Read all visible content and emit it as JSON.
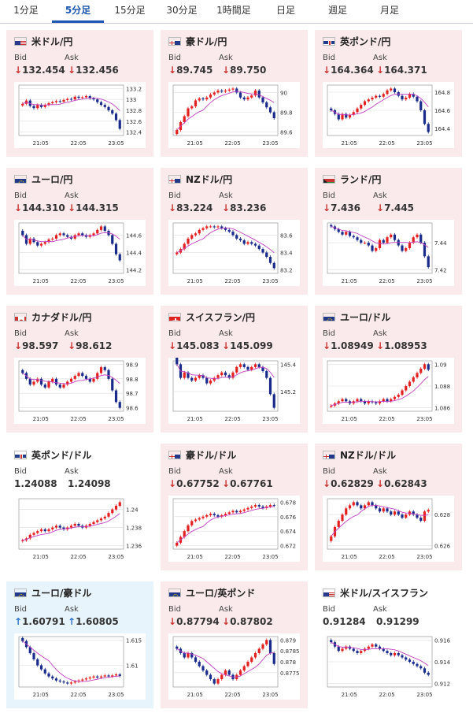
{
  "tabs": [
    {
      "label": "1分足",
      "active": false
    },
    {
      "label": "5分足",
      "active": true
    },
    {
      "label": "15分足",
      "active": false
    },
    {
      "label": "30分足",
      "active": false
    },
    {
      "label": "1時間足",
      "active": false
    },
    {
      "label": "日足",
      "active": false
    },
    {
      "label": "週足",
      "active": false
    },
    {
      "label": "月足",
      "active": false
    }
  ],
  "labels": {
    "bid": "Bid",
    "ask": "Ask"
  },
  "xticks": [
    "21:05",
    "22:05",
    "23:05"
  ],
  "colors": {
    "up_candle": "#e32020",
    "down_candle": "#1a2a8a",
    "ma": "#c040c0",
    "accent": "#1a56b0"
  },
  "cards": [
    {
      "name": "米ドル/円",
      "flag": "us-flag",
      "dir": "down",
      "bid": "132.454",
      "ask": "132.456",
      "yticks": [
        "133.2",
        "133",
        "132.8",
        "132.6",
        "132.4"
      ],
      "series": [
        132.92,
        132.98,
        132.88,
        132.84,
        132.9,
        132.86,
        132.9,
        132.93,
        132.95,
        132.97,
        132.96,
        132.99,
        133.01,
        133.0,
        133.05,
        133.03,
        133.04,
        133.06,
        133.02,
        133.0,
        132.95,
        132.9,
        132.86,
        132.8,
        132.74,
        132.62,
        132.46
      ]
    },
    {
      "name": "豪ドル/円",
      "flag": "au-flag",
      "dir": "down",
      "bid": "89.745",
      "ask": "89.750",
      "yticks": [
        "90",
        "89.8",
        "89.6"
      ],
      "series": [
        89.62,
        89.7,
        89.76,
        89.84,
        89.86,
        89.92,
        89.94,
        89.93,
        89.95,
        89.98,
        90.0,
        90.02,
        90.01,
        90.02,
        90.03,
        90.04,
        90.0,
        89.95,
        89.93,
        89.95,
        89.97,
        90.02,
        89.95,
        89.9,
        89.85,
        89.8,
        89.74
      ]
    },
    {
      "name": "英ポンド/円",
      "flag": "gb-flag",
      "dir": "down",
      "bid": "164.364",
      "ask": "164.371",
      "yticks": [
        "164.8",
        "164.6",
        "164.4"
      ],
      "series": [
        164.6,
        164.56,
        164.5,
        164.56,
        164.52,
        164.55,
        164.58,
        164.62,
        164.66,
        164.7,
        164.72,
        164.74,
        164.76,
        164.75,
        164.78,
        164.82,
        164.84,
        164.8,
        164.76,
        164.72,
        164.74,
        164.78,
        164.75,
        164.7,
        164.6,
        164.45,
        164.36
      ]
    },
    {
      "name": "ユーロ/円",
      "flag": "eu-flag",
      "dir": "down",
      "bid": "144.310",
      "ask": "144.315",
      "yticks": [
        "144.6",
        "144.4",
        "144.2"
      ],
      "series": [
        144.6,
        144.5,
        144.56,
        144.52,
        144.48,
        144.5,
        144.52,
        144.55,
        144.56,
        144.6,
        144.62,
        144.6,
        144.58,
        144.56,
        144.6,
        144.62,
        144.6,
        144.58,
        144.6,
        144.62,
        144.66,
        144.7,
        144.65,
        144.6,
        144.5,
        144.38,
        144.31
      ]
    },
    {
      "name": "NZドル/円",
      "flag": "nz-flag",
      "dir": "down",
      "bid": "83.224",
      "ask": "83.236",
      "yticks": [
        "83.6",
        "83.4",
        "83.2"
      ],
      "series": [
        83.4,
        83.44,
        83.5,
        83.56,
        83.6,
        83.62,
        83.66,
        83.68,
        83.7,
        83.7,
        83.69,
        83.7,
        83.68,
        83.66,
        83.64,
        83.6,
        83.56,
        83.54,
        83.5,
        83.52,
        83.5,
        83.48,
        83.44,
        83.4,
        83.35,
        83.28,
        83.22
      ]
    },
    {
      "name": "ランド/円",
      "flag": "za-flag",
      "dir": "down",
      "bid": "7.436",
      "ask": "7.445",
      "yticks": [
        "7.44",
        "7.42"
      ],
      "series": [
        7.452,
        7.45,
        7.448,
        7.446,
        7.448,
        7.445,
        7.444,
        7.442,
        7.44,
        7.44,
        7.438,
        7.434,
        7.436,
        7.442,
        7.44,
        7.444,
        7.446,
        7.442,
        7.438,
        7.434,
        7.436,
        7.44,
        7.444,
        7.446,
        7.44,
        7.43,
        7.422
      ]
    },
    {
      "name": "カナダドル/円",
      "flag": "ca-flag",
      "dir": "down",
      "bid": "98.597",
      "ask": "98.612",
      "yticks": [
        "98.9",
        "98.8",
        "98.7",
        "98.6"
      ],
      "series": [
        98.84,
        98.8,
        98.76,
        98.78,
        98.8,
        98.76,
        98.74,
        98.78,
        98.8,
        98.76,
        98.74,
        98.76,
        98.78,
        98.8,
        98.82,
        98.84,
        98.82,
        98.8,
        98.78,
        98.8,
        98.84,
        98.88,
        98.86,
        98.8,
        98.72,
        98.64,
        98.6
      ]
    },
    {
      "name": "スイスフラン/円",
      "flag": "ch-flag",
      "dir": "down",
      "bid": "145.083",
      "ask": "145.099",
      "yticks": [
        "145.4",
        "145.2"
      ],
      "series": [
        145.4,
        145.3,
        145.34,
        145.3,
        145.28,
        145.3,
        145.32,
        145.3,
        145.26,
        145.28,
        145.3,
        145.32,
        145.34,
        145.32,
        145.3,
        145.34,
        145.38,
        145.4,
        145.38,
        145.36,
        145.38,
        145.4,
        145.38,
        145.35,
        145.3,
        145.18,
        145.08
      ]
    },
    {
      "name": "ユーロ/ドル",
      "flag": "eu-flag",
      "dir": "down",
      "bid": "1.08949",
      "ask": "1.08953",
      "yticks": [
        "1.09",
        "1.088",
        "1.086"
      ],
      "series": [
        1.0862,
        1.0864,
        1.0866,
        1.0868,
        1.0866,
        1.0864,
        1.0866,
        1.0868,
        1.0866,
        1.0864,
        1.0866,
        1.0865,
        1.0864,
        1.0866,
        1.0868,
        1.0866,
        1.0868,
        1.087,
        1.0872,
        1.0876,
        1.088,
        1.0884,
        1.0888,
        1.0892,
        1.0896,
        1.09,
        1.0895
      ]
    },
    {
      "name": "英ポンド/ドル",
      "flag": "gb-flag",
      "dir": "none",
      "bid": "1.24088",
      "ask": "1.24098",
      "yticks": [
        "1.24",
        "1.238",
        "1.236"
      ],
      "series": [
        1.2366,
        1.2368,
        1.2372,
        1.2374,
        1.2376,
        1.2378,
        1.2376,
        1.2378,
        1.238,
        1.2382,
        1.238,
        1.2378,
        1.238,
        1.2382,
        1.2384,
        1.2382,
        1.238,
        1.2382,
        1.2384,
        1.2386,
        1.2388,
        1.239,
        1.2392,
        1.2396,
        1.24,
        1.2404,
        1.2408
      ]
    },
    {
      "name": "豪ドル/ドル",
      "flag": "au-flag",
      "dir": "down",
      "bid": "0.67752",
      "ask": "0.67761",
      "yticks": [
        "0.678",
        "0.676",
        "0.674",
        "0.672"
      ],
      "series": [
        0.6724,
        0.6732,
        0.674,
        0.6748,
        0.6754,
        0.6756,
        0.6758,
        0.676,
        0.6762,
        0.6764,
        0.6762,
        0.676,
        0.6762,
        0.6764,
        0.6766,
        0.6768,
        0.6766,
        0.6768,
        0.677,
        0.6772,
        0.6774,
        0.6776,
        0.6774,
        0.6772,
        0.6774,
        0.6776,
        0.6775
      ]
    },
    {
      "name": "NZドル/ドル",
      "flag": "nz-flag",
      "dir": "down",
      "bid": "0.62829",
      "ask": "0.62843",
      "yticks": [
        "0.628",
        "0.626"
      ],
      "series": [
        0.6266,
        0.6272,
        0.6276,
        0.628,
        0.6284,
        0.6286,
        0.6288,
        0.6286,
        0.6284,
        0.6286,
        0.6288,
        0.6286,
        0.6284,
        0.6282,
        0.6284,
        0.6282,
        0.628,
        0.6282,
        0.628,
        0.6278,
        0.628,
        0.6282,
        0.628,
        0.6278,
        0.6276,
        0.6282,
        0.6283
      ]
    },
    {
      "name": "ユーロ/豪ドル",
      "flag": "eu-flag",
      "dir": "up",
      "bid": "1.60791",
      "ask": "1.60805",
      "yticks": [
        "1.615",
        "1.61"
      ],
      "series": [
        1.6148,
        1.6136,
        1.6124,
        1.6112,
        1.61,
        1.6092,
        1.6084,
        1.6078,
        1.6074,
        1.607,
        1.6068,
        1.6066,
        1.6064,
        1.6066,
        1.6068,
        1.607,
        1.6072,
        1.6074,
        1.6076,
        1.6078,
        1.6076,
        1.6078,
        1.608,
        1.6078,
        1.608,
        1.6082,
        1.6079
      ]
    },
    {
      "name": "ユーロ/英ポンド",
      "flag": "eu-flag",
      "dir": "down",
      "bid": "0.87794",
      "ask": "0.87802",
      "yticks": [
        "0.879",
        "0.8785",
        "0.878",
        "0.8775"
      ],
      "series": [
        0.8786,
        0.8784,
        0.8782,
        0.8784,
        0.8782,
        0.878,
        0.8778,
        0.8776,
        0.8774,
        0.8772,
        0.877,
        0.8772,
        0.8774,
        0.8776,
        0.8774,
        0.8772,
        0.8774,
        0.8776,
        0.8778,
        0.878,
        0.8782,
        0.8784,
        0.8786,
        0.8788,
        0.879,
        0.8784,
        0.8779
      ]
    },
    {
      "name": "米ドル/スイスフラン",
      "flag": "us-flag",
      "dir": "none",
      "bid": "0.91284",
      "ask": "0.91299",
      "yticks": [
        "0.916",
        "0.914",
        "0.912"
      ],
      "series": [
        0.9158,
        0.9154,
        0.915,
        0.9152,
        0.9154,
        0.9152,
        0.915,
        0.9148,
        0.915,
        0.9152,
        0.9154,
        0.9156,
        0.9154,
        0.9152,
        0.915,
        0.9148,
        0.9146,
        0.9148,
        0.9146,
        0.9144,
        0.9142,
        0.914,
        0.9138,
        0.9136,
        0.9134,
        0.913,
        0.9128
      ]
    }
  ]
}
